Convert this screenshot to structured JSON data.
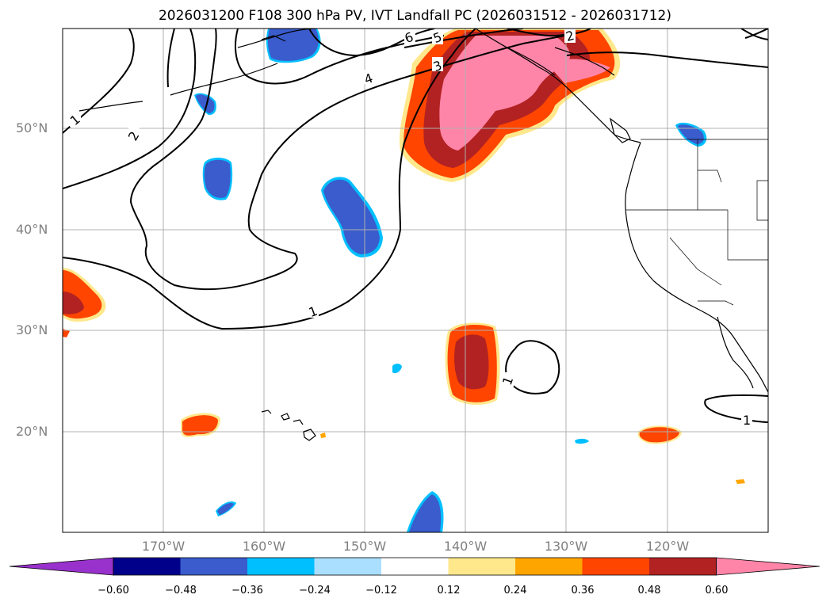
{
  "title": "2026031200 F108 300 hPa PV, IVT Landfall PC (2026031512 - 2026031712)",
  "lat_labels": [
    "50°N",
    "40°N",
    "30°N",
    "20°N"
  ],
  "lon_labels": [
    "170°W",
    "160°W",
    "150°W",
    "140°W",
    "130°W",
    "120°W"
  ],
  "contour_labels": [
    "1",
    "2",
    "6",
    "5",
    "4",
    "3",
    "2",
    "1",
    "1"
  ],
  "colorbar": {
    "ticks": [
      "−0.60",
      "−0.48",
      "−0.36",
      "−0.24",
      "−0.12",
      "0.12",
      "0.24",
      "0.36",
      "0.48",
      "0.60"
    ],
    "colors": [
      "#9932cc",
      "#00008b",
      "#3a5ccc",
      "#00bfff",
      "#aadfff",
      "#ffffff",
      "#ffe88c",
      "#ffa500",
      "#ff4500",
      "#b22222",
      "#ff85a8"
    ]
  }
}
